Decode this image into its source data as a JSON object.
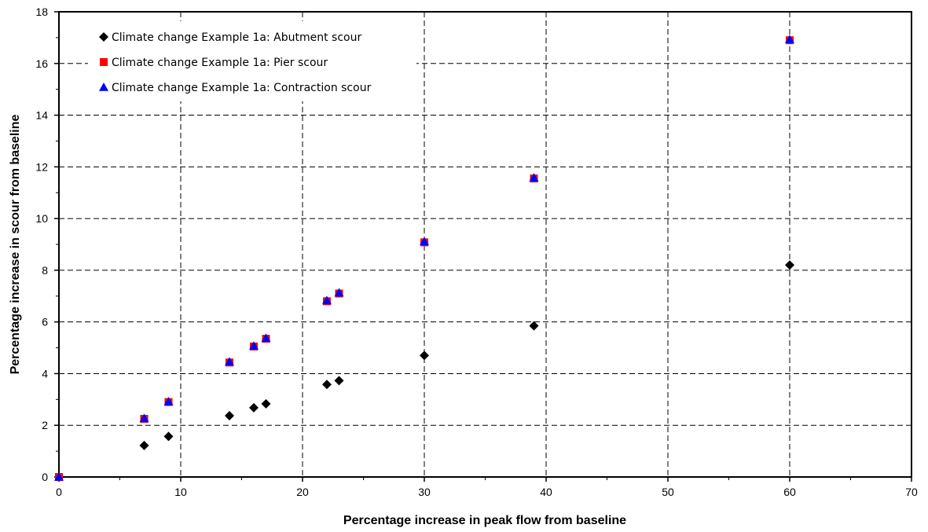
{
  "chart_data": {
    "type": "scatter",
    "title": "",
    "xlabel": "Percentage increase in peak flow from baseline",
    "ylabel": "Percentage increase in scour from baseline",
    "xlim": [
      0,
      70
    ],
    "ylim": [
      0,
      18
    ],
    "x_ticks": [
      0,
      10,
      20,
      30,
      40,
      50,
      60,
      70
    ],
    "y_ticks": [
      0,
      2,
      4,
      6,
      8,
      10,
      12,
      14,
      16,
      18
    ],
    "x_tick_labels": [
      "0",
      "10",
      "20",
      "30",
      "40",
      "50",
      "60",
      "70"
    ],
    "y_tick_labels": [
      "0",
      "2",
      "4",
      "6",
      "8",
      "10",
      "12",
      "14",
      "16",
      "18"
    ],
    "grid": true,
    "grid_style": "dashed",
    "legend_position": "top-left",
    "series": [
      {
        "name": "Climate change Example 1a: Abutment scour",
        "marker": "diamond",
        "color": "#000000",
        "points": [
          [
            0,
            0
          ],
          [
            7,
            1.22
          ],
          [
            9,
            1.57
          ],
          [
            14,
            2.37
          ],
          [
            16,
            2.68
          ],
          [
            17,
            2.83
          ],
          [
            22,
            3.58
          ],
          [
            23,
            3.73
          ],
          [
            30,
            4.7
          ],
          [
            39,
            5.85
          ],
          [
            60,
            8.2
          ]
        ]
      },
      {
        "name": "Climate change Example 1a: Pier scour",
        "marker": "square",
        "color": "#ff0000",
        "points": [
          [
            0,
            0
          ],
          [
            7,
            2.25
          ],
          [
            9,
            2.9
          ],
          [
            14,
            4.43
          ],
          [
            16,
            5.05
          ],
          [
            17,
            5.35
          ],
          [
            22,
            6.8
          ],
          [
            23,
            7.1
          ],
          [
            30,
            9.08
          ],
          [
            39,
            11.55
          ],
          [
            60,
            16.9
          ]
        ]
      },
      {
        "name": "Climate change Example 1a: Contraction scour",
        "marker": "triangle",
        "color": "#0000ff",
        "points": [
          [
            0,
            0
          ],
          [
            7,
            2.27
          ],
          [
            9,
            2.92
          ],
          [
            14,
            4.46
          ],
          [
            16,
            5.07
          ],
          [
            17,
            5.37
          ],
          [
            22,
            6.83
          ],
          [
            23,
            7.13
          ],
          [
            30,
            9.11
          ],
          [
            39,
            11.58
          ],
          [
            60,
            16.93
          ]
        ]
      }
    ]
  }
}
